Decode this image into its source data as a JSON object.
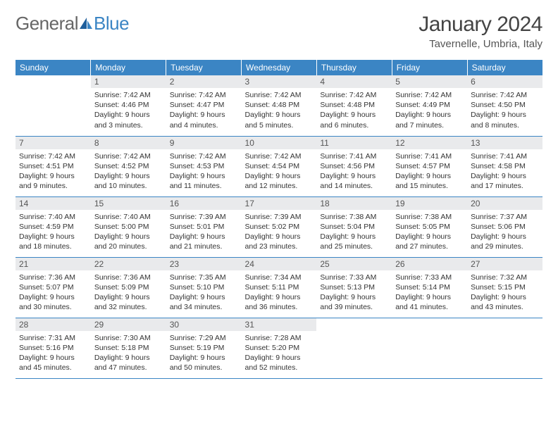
{
  "logo": {
    "word1": "General",
    "word2": "Blue"
  },
  "title": "January 2024",
  "location": "Tavernelle, Umbria, Italy",
  "weekdays": [
    "Sunday",
    "Monday",
    "Tuesday",
    "Wednesday",
    "Thursday",
    "Friday",
    "Saturday"
  ],
  "colors": {
    "header_bg": "#3b85c4",
    "header_text": "#ffffff",
    "daynum_bg": "#e9eaec",
    "row_border": "#3b85c4",
    "text": "#333333"
  },
  "fonts": {
    "title_size_pt": 30,
    "location_size_pt": 15,
    "weekday_size_pt": 12,
    "daynum_size_pt": 12,
    "body_size_pt": 10.5
  },
  "weeks": [
    [
      {
        "n": "",
        "sunrise": "",
        "sunset": "",
        "daylight": ""
      },
      {
        "n": "1",
        "sunrise": "7:42 AM",
        "sunset": "4:46 PM",
        "daylight": "9 hours and 3 minutes."
      },
      {
        "n": "2",
        "sunrise": "7:42 AM",
        "sunset": "4:47 PM",
        "daylight": "9 hours and 4 minutes."
      },
      {
        "n": "3",
        "sunrise": "7:42 AM",
        "sunset": "4:48 PM",
        "daylight": "9 hours and 5 minutes."
      },
      {
        "n": "4",
        "sunrise": "7:42 AM",
        "sunset": "4:48 PM",
        "daylight": "9 hours and 6 minutes."
      },
      {
        "n": "5",
        "sunrise": "7:42 AM",
        "sunset": "4:49 PM",
        "daylight": "9 hours and 7 minutes."
      },
      {
        "n": "6",
        "sunrise": "7:42 AM",
        "sunset": "4:50 PM",
        "daylight": "9 hours and 8 minutes."
      }
    ],
    [
      {
        "n": "7",
        "sunrise": "7:42 AM",
        "sunset": "4:51 PM",
        "daylight": "9 hours and 9 minutes."
      },
      {
        "n": "8",
        "sunrise": "7:42 AM",
        "sunset": "4:52 PM",
        "daylight": "9 hours and 10 minutes."
      },
      {
        "n": "9",
        "sunrise": "7:42 AM",
        "sunset": "4:53 PM",
        "daylight": "9 hours and 11 minutes."
      },
      {
        "n": "10",
        "sunrise": "7:42 AM",
        "sunset": "4:54 PM",
        "daylight": "9 hours and 12 minutes."
      },
      {
        "n": "11",
        "sunrise": "7:41 AM",
        "sunset": "4:56 PM",
        "daylight": "9 hours and 14 minutes."
      },
      {
        "n": "12",
        "sunrise": "7:41 AM",
        "sunset": "4:57 PM",
        "daylight": "9 hours and 15 minutes."
      },
      {
        "n": "13",
        "sunrise": "7:41 AM",
        "sunset": "4:58 PM",
        "daylight": "9 hours and 17 minutes."
      }
    ],
    [
      {
        "n": "14",
        "sunrise": "7:40 AM",
        "sunset": "4:59 PM",
        "daylight": "9 hours and 18 minutes."
      },
      {
        "n": "15",
        "sunrise": "7:40 AM",
        "sunset": "5:00 PM",
        "daylight": "9 hours and 20 minutes."
      },
      {
        "n": "16",
        "sunrise": "7:39 AM",
        "sunset": "5:01 PM",
        "daylight": "9 hours and 21 minutes."
      },
      {
        "n": "17",
        "sunrise": "7:39 AM",
        "sunset": "5:02 PM",
        "daylight": "9 hours and 23 minutes."
      },
      {
        "n": "18",
        "sunrise": "7:38 AM",
        "sunset": "5:04 PM",
        "daylight": "9 hours and 25 minutes."
      },
      {
        "n": "19",
        "sunrise": "7:38 AM",
        "sunset": "5:05 PM",
        "daylight": "9 hours and 27 minutes."
      },
      {
        "n": "20",
        "sunrise": "7:37 AM",
        "sunset": "5:06 PM",
        "daylight": "9 hours and 29 minutes."
      }
    ],
    [
      {
        "n": "21",
        "sunrise": "7:36 AM",
        "sunset": "5:07 PM",
        "daylight": "9 hours and 30 minutes."
      },
      {
        "n": "22",
        "sunrise": "7:36 AM",
        "sunset": "5:09 PM",
        "daylight": "9 hours and 32 minutes."
      },
      {
        "n": "23",
        "sunrise": "7:35 AM",
        "sunset": "5:10 PM",
        "daylight": "9 hours and 34 minutes."
      },
      {
        "n": "24",
        "sunrise": "7:34 AM",
        "sunset": "5:11 PM",
        "daylight": "9 hours and 36 minutes."
      },
      {
        "n": "25",
        "sunrise": "7:33 AM",
        "sunset": "5:13 PM",
        "daylight": "9 hours and 39 minutes."
      },
      {
        "n": "26",
        "sunrise": "7:33 AM",
        "sunset": "5:14 PM",
        "daylight": "9 hours and 41 minutes."
      },
      {
        "n": "27",
        "sunrise": "7:32 AM",
        "sunset": "5:15 PM",
        "daylight": "9 hours and 43 minutes."
      }
    ],
    [
      {
        "n": "28",
        "sunrise": "7:31 AM",
        "sunset": "5:16 PM",
        "daylight": "9 hours and 45 minutes."
      },
      {
        "n": "29",
        "sunrise": "7:30 AM",
        "sunset": "5:18 PM",
        "daylight": "9 hours and 47 minutes."
      },
      {
        "n": "30",
        "sunrise": "7:29 AM",
        "sunset": "5:19 PM",
        "daylight": "9 hours and 50 minutes."
      },
      {
        "n": "31",
        "sunrise": "7:28 AM",
        "sunset": "5:20 PM",
        "daylight": "9 hours and 52 minutes."
      },
      {
        "n": "",
        "sunrise": "",
        "sunset": "",
        "daylight": ""
      },
      {
        "n": "",
        "sunrise": "",
        "sunset": "",
        "daylight": ""
      },
      {
        "n": "",
        "sunrise": "",
        "sunset": "",
        "daylight": ""
      }
    ]
  ],
  "labels": {
    "sunrise": "Sunrise:",
    "sunset": "Sunset:",
    "daylight": "Daylight:"
  }
}
